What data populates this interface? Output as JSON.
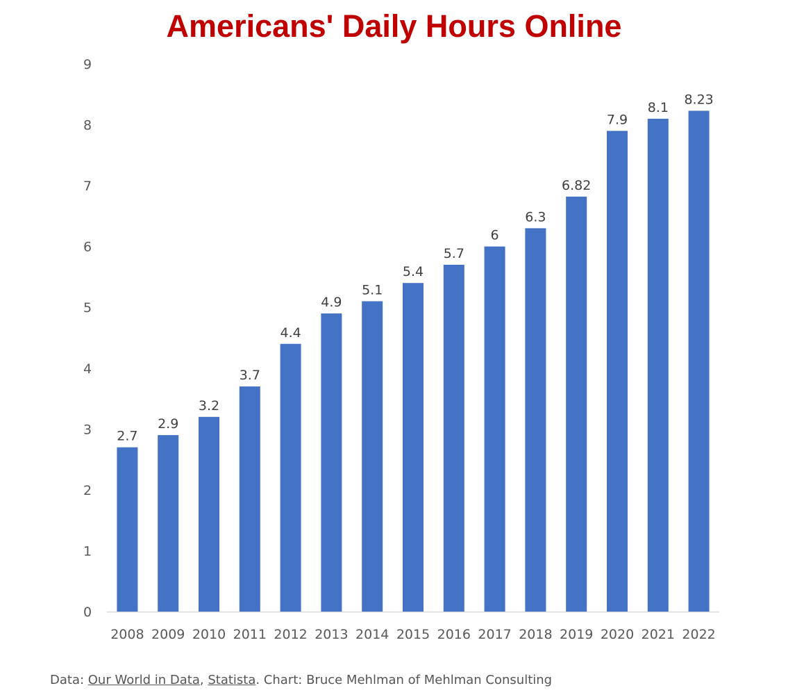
{
  "chart_data": {
    "type": "bar",
    "title": "Americans' Daily Hours Online",
    "xlabel": "",
    "ylabel": "",
    "categories": [
      "2008",
      "2009",
      "2010",
      "2011",
      "2012",
      "2013",
      "2014",
      "2015",
      "2016",
      "2017",
      "2018",
      "2019",
      "2020",
      "2021",
      "2022"
    ],
    "values": [
      2.7,
      2.9,
      3.2,
      3.7,
      4.4,
      4.9,
      5.1,
      5.4,
      5.7,
      6,
      6.3,
      6.82,
      7.9,
      8.1,
      8.23
    ],
    "data_labels": [
      "2.7",
      "2.9",
      "3.2",
      "3.7",
      "4.4",
      "4.9",
      "5.1",
      "5.4",
      "5.7",
      "6",
      "6.3",
      "6.82",
      "7.9",
      "8.1",
      "8.23"
    ],
    "ylim": [
      0,
      9
    ],
    "yticks": [
      "0",
      "1",
      "2",
      "3",
      "4",
      "5",
      "6",
      "7",
      "8",
      "9"
    ],
    "grid": false,
    "legend": "none",
    "bar_color": "#4472c4",
    "title_color": "#c00000"
  },
  "source": {
    "prefix": "Data: ",
    "link1": "Our World in Data",
    "sep": ", ",
    "link2": "Statista",
    "suffix": ". Chart: Bruce Mehlman of Mehlman Consulting"
  }
}
